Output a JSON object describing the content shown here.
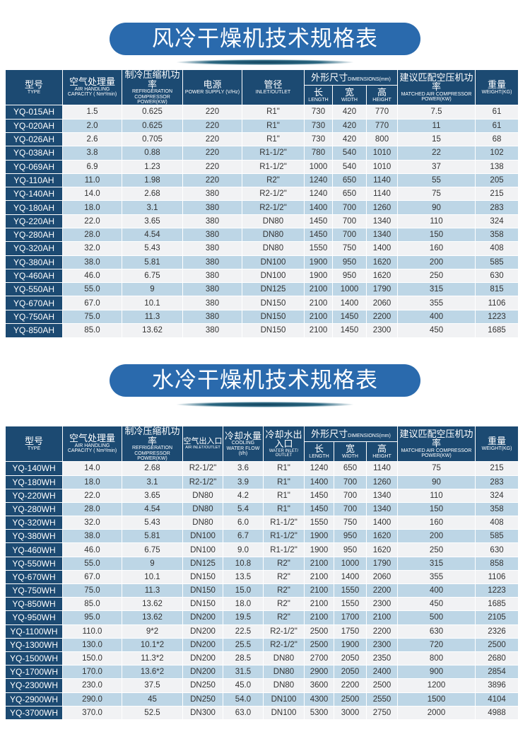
{
  "air_cooled": {
    "title": "风冷干燥机技术规格表",
    "headers": {
      "type": {
        "cn": "型号",
        "en": "TYPE"
      },
      "capacity": {
        "cn": "空气处理量",
        "en": "AIR HANDLING CAPACITY ( Nm³/min)"
      },
      "refrigeration": {
        "cn": "制冷压缩机功率",
        "en": "REFRIGERATION COMPRESSOR POWER(KW)"
      },
      "power": {
        "cn": "电源",
        "en": "POWER SUPPLY (V/Hz)"
      },
      "pipe": {
        "cn": "管径",
        "en": "INLET/OUTLET"
      },
      "dimensions": {
        "cn": "外形尺寸",
        "en": "DIMENSIONS(mm)"
      },
      "length": {
        "cn": "长",
        "en": "LENGTH"
      },
      "width": {
        "cn": "宽",
        "en": "WIDTH"
      },
      "height": {
        "cn": "高",
        "en": "HEIGHT"
      },
      "matched": {
        "cn": "建议匹配空压机功率",
        "en": "MATCHED AIR COMPRESSOR POWER(KW)"
      },
      "weight": {
        "cn": "重量",
        "en": "WEIGHT(KG)"
      }
    },
    "rows": [
      [
        "YQ-015AH",
        "1.5",
        "0.625",
        "220",
        "R1\"",
        "730",
        "420",
        "770",
        "7.5",
        "61"
      ],
      [
        "YQ-020AH",
        "2.0",
        "0.625",
        "220",
        "R1\"",
        "730",
        "420",
        "770",
        "11",
        "61"
      ],
      [
        "YQ-026AH",
        "2.6",
        "0.705",
        "220",
        "R1\"",
        "730",
        "420",
        "800",
        "15",
        "68"
      ],
      [
        "YQ-038AH",
        "3.8",
        "0.88",
        "220",
        "R1-1/2\"",
        "780",
        "540",
        "1010",
        "22",
        "102"
      ],
      [
        "YQ-069AH",
        "6.9",
        "1.23",
        "220",
        "R1-1/2\"",
        "1000",
        "540",
        "1010",
        "37",
        "138"
      ],
      [
        "YQ-110AH",
        "11.0",
        "1.98",
        "220",
        "R2\"",
        "1240",
        "650",
        "1140",
        "55",
        "205"
      ],
      [
        "YQ-140AH",
        "14.0",
        "2.68",
        "380",
        "R2-1/2\"",
        "1240",
        "650",
        "1140",
        "75",
        "215"
      ],
      [
        "YQ-180AH",
        "18.0",
        "3.1",
        "380",
        "R2-1/2\"",
        "1400",
        "700",
        "1260",
        "90",
        "283"
      ],
      [
        "YQ-220AH",
        "22.0",
        "3.65",
        "380",
        "DN80",
        "1450",
        "700",
        "1340",
        "110",
        "324"
      ],
      [
        "YQ-280AH",
        "28.0",
        "4.54",
        "380",
        "DN80",
        "1450",
        "700",
        "1340",
        "150",
        "358"
      ],
      [
        "YQ-320AH",
        "32.0",
        "5.43",
        "380",
        "DN80",
        "1550",
        "750",
        "1400",
        "160",
        "408"
      ],
      [
        "YQ-380AH",
        "38.0",
        "5.81",
        "380",
        "DN100",
        "1900",
        "950",
        "1620",
        "200",
        "585"
      ],
      [
        "YQ-460AH",
        "46.0",
        "6.75",
        "380",
        "DN100",
        "1900",
        "950",
        "1620",
        "250",
        "630"
      ],
      [
        "YQ-550AH",
        "55.0",
        "9",
        "380",
        "DN125",
        "2100",
        "1000",
        "1790",
        "315",
        "815"
      ],
      [
        "YQ-670AH",
        "67.0",
        "10.1",
        "380",
        "DN150",
        "2100",
        "1400",
        "2060",
        "355",
        "1106"
      ],
      [
        "YQ-750AH",
        "75.0",
        "11.3",
        "380",
        "DN150",
        "2100",
        "1450",
        "2200",
        "400",
        "1223"
      ],
      [
        "YQ-850AH",
        "85.0",
        "13.62",
        "380",
        "DN150",
        "2100",
        "1450",
        "2300",
        "450",
        "1685"
      ]
    ]
  },
  "water_cooled": {
    "title": "水冷干燥机技术规格表",
    "headers": {
      "type": {
        "cn": "型号",
        "en": "TYPE"
      },
      "capacity": {
        "cn": "空气处理量",
        "en": "AIR HANDLING CAPACITY ( Nm³/min)"
      },
      "refrigeration": {
        "cn": "制冷压缩机功率",
        "en": "REFRIGERATION COMPRESSOR POWER(KW)"
      },
      "air_io": {
        "cn": "空气出入口",
        "en": "AIR INLET/OUTLET"
      },
      "water_flow": {
        "cn": "冷却水量",
        "en": "COOLING WATER FLOW (t/h)"
      },
      "water_io": {
        "cn": "冷却水出入口",
        "en": "WATER INLET/ OUTLET"
      },
      "dimensions": {
        "cn": "外形尺寸",
        "en": "DIMENSIONS(mm)"
      },
      "length": {
        "cn": "长",
        "en": "LENGTH"
      },
      "width": {
        "cn": "宽",
        "en": "WIDTH"
      },
      "height": {
        "cn": "高",
        "en": "HEIGHT"
      },
      "matched": {
        "cn": "建议匹配空压机功率",
        "en": "MATCHED AIR COMPRESSOR POWER(KW)"
      },
      "weight": {
        "cn": "重量",
        "en": "WEIGHT(KG)"
      }
    },
    "rows": [
      [
        "YQ-140WH",
        "14.0",
        "2.68",
        "R2-1/2\"",
        "3.6",
        "R1\"",
        "1240",
        "650",
        "1140",
        "75",
        "215"
      ],
      [
        "YQ-180WH",
        "18.0",
        "3.1",
        "R2-1/2\"",
        "3.9",
        "R1\"",
        "1400",
        "700",
        "1260",
        "90",
        "283"
      ],
      [
        "YQ-220WH",
        "22.0",
        "3.65",
        "DN80",
        "4.2",
        "R1\"",
        "1450",
        "700",
        "1340",
        "110",
        "324"
      ],
      [
        "YQ-280WH",
        "28.0",
        "4.54",
        "DN80",
        "5.4",
        "R1\"",
        "1450",
        "700",
        "1340",
        "150",
        "358"
      ],
      [
        "YQ-320WH",
        "32.0",
        "5.43",
        "DN80",
        "6.0",
        "R1-1/2\"",
        "1550",
        "750",
        "1400",
        "160",
        "408"
      ],
      [
        "YQ-380WH",
        "38.0",
        "5.81",
        "DN100",
        "6.7",
        "R1-1/2\"",
        "1900",
        "950",
        "1620",
        "200",
        "585"
      ],
      [
        "YQ-460WH",
        "46.0",
        "6.75",
        "DN100",
        "9.0",
        "R1-1/2\"",
        "1900",
        "950",
        "1620",
        "250",
        "630"
      ],
      [
        "YQ-550WH",
        "55.0",
        "9",
        "DN125",
        "10.8",
        "R2\"",
        "2100",
        "1000",
        "1790",
        "315",
        "858"
      ],
      [
        "YQ-670WH",
        "67.0",
        "10.1",
        "DN150",
        "13.5",
        "R2\"",
        "2100",
        "1400",
        "2060",
        "355",
        "1106"
      ],
      [
        "YQ-750WH",
        "75.0",
        "11.3",
        "DN150",
        "15.0",
        "R2\"",
        "2100",
        "1550",
        "2200",
        "400",
        "1223"
      ],
      [
        "YQ-850WH",
        "85.0",
        "13.62",
        "DN150",
        "18.0",
        "R2\"",
        "2100",
        "1550",
        "2300",
        "450",
        "1685"
      ],
      [
        "YQ-950WH",
        "95.0",
        "13.62",
        "DN200",
        "19.5",
        "R2\"",
        "2100",
        "1700",
        "2100",
        "500",
        "2105"
      ],
      [
        "YQ-1100WH",
        "110.0",
        "9*2",
        "DN200",
        "22.5",
        "R2-1/2\"",
        "2500",
        "1750",
        "2200",
        "630",
        "2326"
      ],
      [
        "YQ-1300WH",
        "130.0",
        "10.1*2",
        "DN200",
        "25.5",
        "R2-1/2\"",
        "2500",
        "1900",
        "2300",
        "720",
        "2500"
      ],
      [
        "YQ-1500WH",
        "150.0",
        "11.3*2",
        "DN200",
        "28.5",
        "DN80",
        "2700",
        "2050",
        "2350",
        "800",
        "2680"
      ],
      [
        "YQ-1700WH",
        "170.0",
        "13.6*2",
        "DN200",
        "31.5",
        "DN80",
        "2900",
        "2050",
        "2400",
        "900",
        "2854"
      ],
      [
        "YQ-2300WH",
        "230.0",
        "37.5",
        "DN250",
        "45.0",
        "DN80",
        "3600",
        "2200",
        "2500",
        "1200",
        "3896"
      ],
      [
        "YQ-2900WH",
        "290.0",
        "45",
        "DN250",
        "54.0",
        "DN100",
        "4300",
        "2500",
        "2550",
        "1500",
        "4104"
      ],
      [
        "YQ-3700WH",
        "370.0",
        "52.5",
        "DN300",
        "63.0",
        "DN100",
        "5300",
        "3000",
        "2750",
        "2000",
        "4988"
      ]
    ]
  }
}
